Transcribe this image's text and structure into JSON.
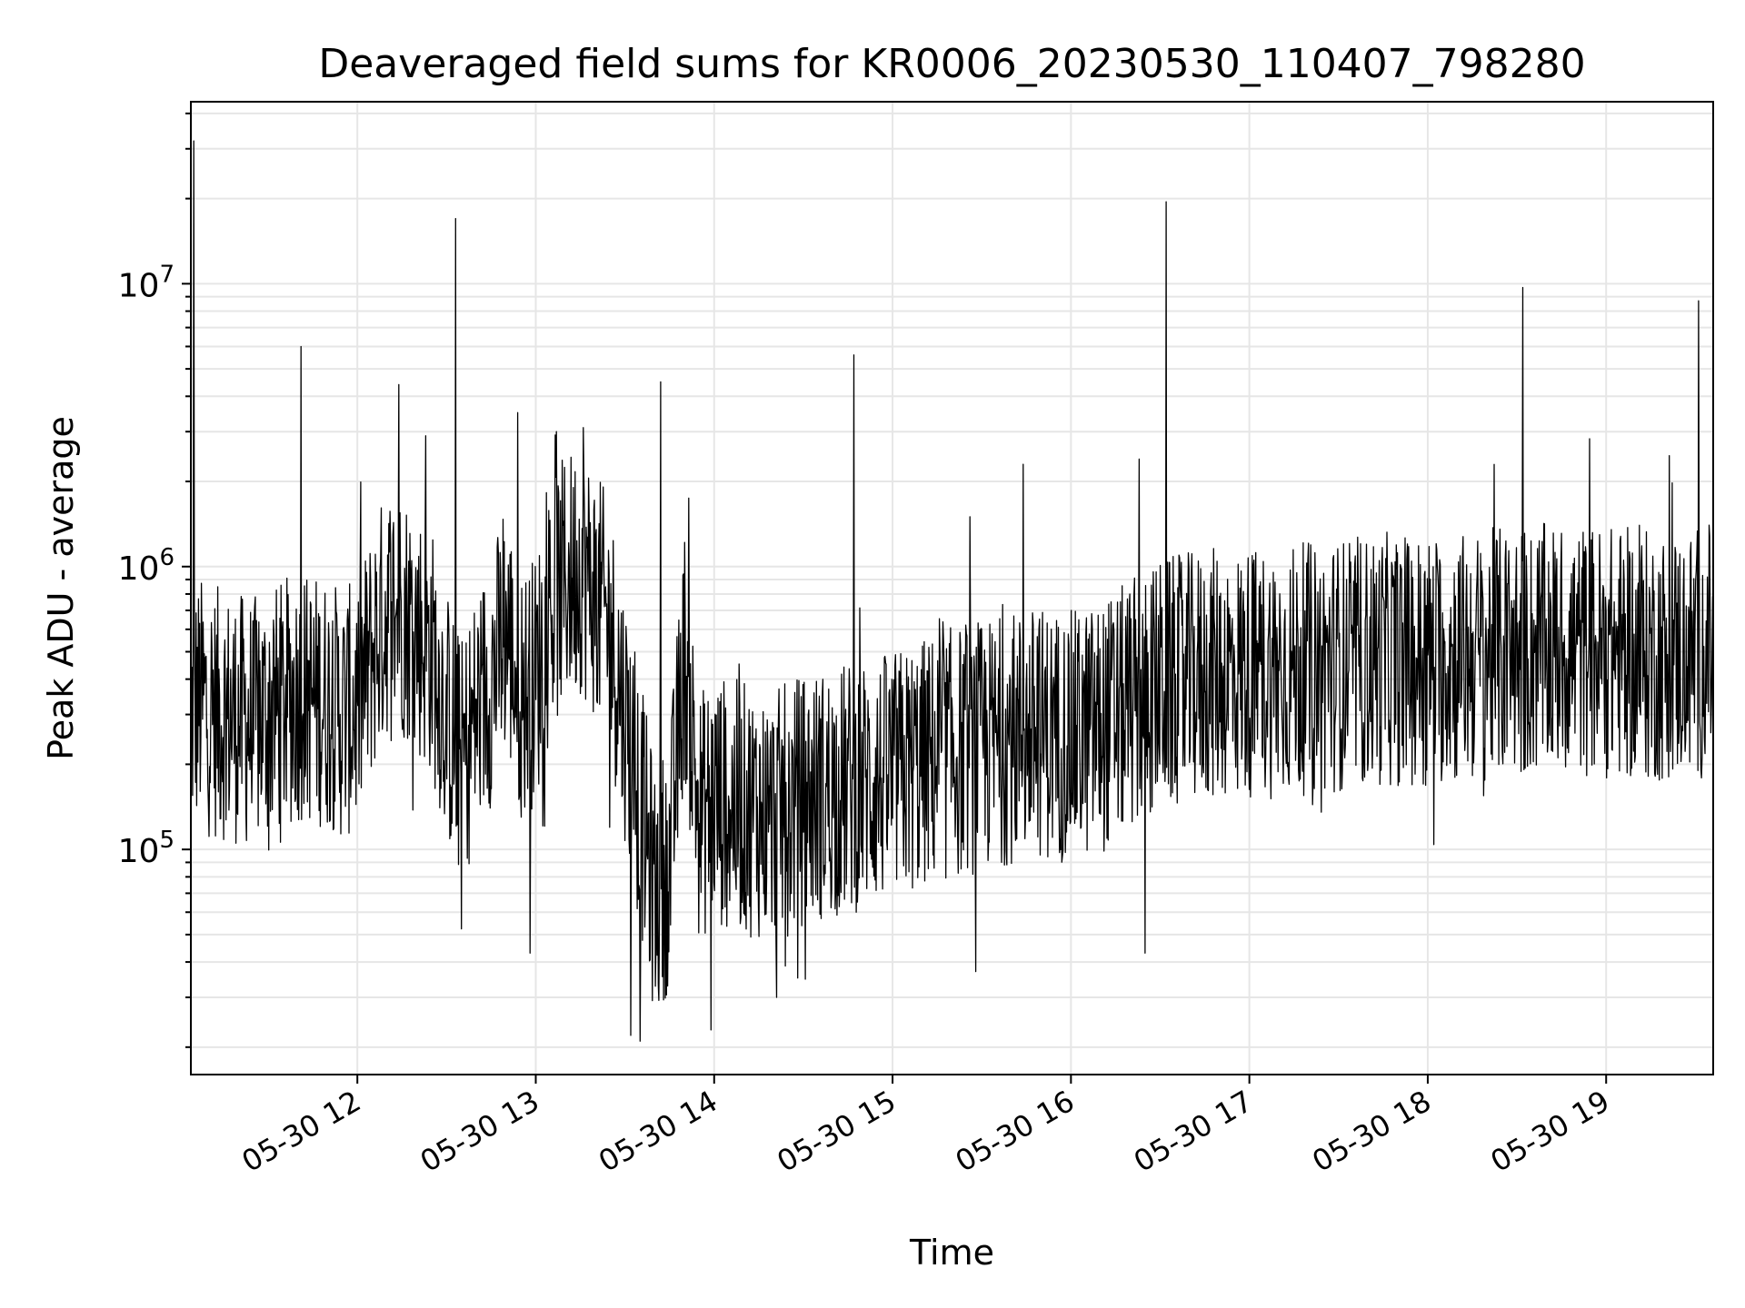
{
  "chart_data": {
    "type": "line",
    "title": "Deaveraged field sums for KR0006_20230530_110407_798280",
    "xlabel": "Time",
    "ylabel": "Peak ADU - average",
    "yscale": "log",
    "grid": true,
    "legend": "none",
    "line_color": "#000000",
    "grid_color": "#e6e6e6",
    "xlim": [
      "2023-05-30 11:04",
      "2023-05-30 19:36"
    ],
    "ylim": [
      16000,
      44000000
    ],
    "x_ticks": [
      {
        "value": "2023-05-30 12:00",
        "label": "05-30 12"
      },
      {
        "value": "2023-05-30 13:00",
        "label": "05-30 13"
      },
      {
        "value": "2023-05-30 14:00",
        "label": "05-30 14"
      },
      {
        "value": "2023-05-30 15:00",
        "label": "05-30 15"
      },
      {
        "value": "2023-05-30 16:00",
        "label": "05-30 16"
      },
      {
        "value": "2023-05-30 17:00",
        "label": "05-30 17"
      },
      {
        "value": "2023-05-30 18:00",
        "label": "05-30 18"
      },
      {
        "value": "2023-05-30 19:00",
        "label": "05-30 19"
      }
    ],
    "y_ticks": [
      {
        "value": 100000,
        "base": "10",
        "exp": "5"
      },
      {
        "value": 1000000,
        "base": "10",
        "exp": "6"
      },
      {
        "value": 10000000,
        "base": "10",
        "exp": "7"
      }
    ],
    "series": [
      {
        "x": [
          "2023-05-30 11:04",
          "2023-05-30 11:06",
          "2023-05-30 11:08",
          "2023-05-30 11:10",
          "2023-05-30 11:15",
          "2023-05-30 11:20",
          "2023-05-30 11:25",
          "2023-05-30 11:30",
          "2023-05-30 11:35",
          "2023-05-30 11:40",
          "2023-05-30 11:45",
          "2023-05-30 11:50",
          "2023-05-30 11:55",
          "2023-05-30 12:00",
          "2023-05-30 12:05",
          "2023-05-30 12:10",
          "2023-05-30 12:15",
          "2023-05-30 12:20",
          "2023-05-30 12:25",
          "2023-05-30 12:30",
          "2023-05-30 12:35",
          "2023-05-30 12:40",
          "2023-05-30 12:45",
          "2023-05-30 12:50",
          "2023-05-30 12:55",
          "2023-05-30 13:00",
          "2023-05-30 13:05",
          "2023-05-30 13:10",
          "2023-05-30 13:15",
          "2023-05-30 13:20",
          "2023-05-30 13:25",
          "2023-05-30 13:30",
          "2023-05-30 13:35",
          "2023-05-30 13:40",
          "2023-05-30 13:45",
          "2023-05-30 13:50",
          "2023-05-30 13:55",
          "2023-05-30 14:00",
          "2023-05-30 14:10",
          "2023-05-30 14:20",
          "2023-05-30 14:30",
          "2023-05-30 14:40",
          "2023-05-30 14:50",
          "2023-05-30 15:00",
          "2023-05-30 15:10",
          "2023-05-30 15:20",
          "2023-05-30 15:30",
          "2023-05-30 15:40",
          "2023-05-30 15:50",
          "2023-05-30 16:00",
          "2023-05-30 16:10",
          "2023-05-30 16:20",
          "2023-05-30 16:30",
          "2023-05-30 16:40",
          "2023-05-30 16:50",
          "2023-05-30 17:00",
          "2023-05-30 17:15",
          "2023-05-30 17:30",
          "2023-05-30 17:45",
          "2023-05-30 18:00",
          "2023-05-30 18:15",
          "2023-05-30 18:30",
          "2023-05-30 18:45",
          "2023-05-30 19:00",
          "2023-05-30 19:15",
          "2023-05-30 19:30",
          "2023-05-30 19:36"
        ],
        "y": [
          300000,
          320000,
          330000,
          310000,
          300000,
          290000,
          280000,
          300000,
          320000,
          350000,
          340000,
          330000,
          300000,
          320000,
          500000,
          700000,
          700000,
          600000,
          500000,
          300000,
          200000,
          300000,
          400000,
          600000,
          350000,
          400000,
          700000,
          900000,
          1000000,
          800000,
          600000,
          300000,
          150000,
          70000,
          90000,
          500000,
          130000,
          150000,
          140000,
          130000,
          150000,
          160000,
          170000,
          180000,
          200000,
          220000,
          230000,
          250000,
          260000,
          250000,
          270000,
          320000,
          380000,
          400000,
          420000,
          420000,
          430000,
          450000,
          470000,
          470000,
          480000,
          500000,
          510000,
          500000,
          480000,
          490000,
          520000
        ],
        "spikes": [
          {
            "x": "2023-05-30 11:05",
            "y": 32000000
          },
          {
            "x": "2023-05-30 11:04",
            "y": 7200000
          },
          {
            "x": "2023-05-30 11:41",
            "y": 6000000
          },
          {
            "x": "2023-05-30 12:14",
            "y": 4400000
          },
          {
            "x": "2023-05-30 12:23",
            "y": 2900000
          },
          {
            "x": "2023-05-30 12:33",
            "y": 17000000
          },
          {
            "x": "2023-05-30 12:54",
            "y": 3500000
          },
          {
            "x": "2023-05-30 13:07",
            "y": 3000000
          },
          {
            "x": "2023-05-30 13:16",
            "y": 3100000
          },
          {
            "x": "2023-05-30 13:42",
            "y": 4500000
          },
          {
            "x": "2023-05-30 14:47",
            "y": 5600000
          },
          {
            "x": "2023-05-30 15:26",
            "y": 1500000
          },
          {
            "x": "2023-05-30 15:44",
            "y": 2300000
          },
          {
            "x": "2023-05-30 16:23",
            "y": 2400000
          },
          {
            "x": "2023-05-30 16:32",
            "y": 19500000
          },
          {
            "x": "2023-05-30 18:32",
            "y": 9700000
          },
          {
            "x": "2023-05-30 19:31",
            "y": 8700000
          },
          {
            "x": "2023-05-30 13:35",
            "y": 21000
          },
          {
            "x": "2023-05-30 13:32",
            "y": 22000
          },
          {
            "x": "2023-05-30 13:59",
            "y": 23000
          },
          {
            "x": "2023-05-30 14:21",
            "y": 30000
          },
          {
            "x": "2023-05-30 15:28",
            "y": 37000
          },
          {
            "x": "2023-05-30 16:25",
            "y": 43000
          },
          {
            "x": "2023-05-30 12:58",
            "y": 43000
          }
        ]
      }
    ]
  }
}
